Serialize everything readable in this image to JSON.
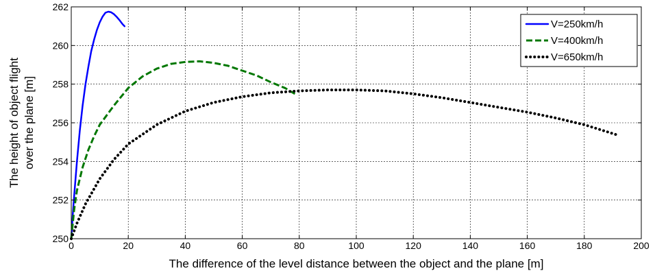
{
  "chart_data": {
    "type": "line",
    "xlabel": "The difference of the level distance between the object and the plane [m]",
    "ylabel_lines": [
      "The height of object flight",
      "over the plane [m]"
    ],
    "xlim": [
      0,
      200
    ],
    "ylim": [
      250,
      262
    ],
    "xticks": [
      0,
      20,
      40,
      60,
      80,
      100,
      120,
      140,
      160,
      180,
      200
    ],
    "yticks": [
      250,
      252,
      254,
      256,
      258,
      260,
      262
    ],
    "grid": true,
    "legend_position": "top-right",
    "series": [
      {
        "name": "V=250km/h",
        "color": "#0000ff",
        "style": "solid",
        "x": [
          0,
          0.5,
          1,
          2,
          3,
          4,
          5,
          6,
          7,
          8,
          9,
          10,
          11,
          12,
          13,
          14,
          15,
          16,
          17,
          18,
          18.7
        ],
        "y": [
          250,
          251.2,
          252.2,
          254.0,
          255.6,
          256.9,
          258.0,
          258.9,
          259.7,
          260.3,
          260.8,
          261.2,
          261.5,
          261.7,
          261.75,
          261.72,
          261.62,
          261.47,
          261.3,
          261.1,
          261.0
        ]
      },
      {
        "name": "V=400km/h",
        "color": "#007700",
        "style": "dashed",
        "x": [
          0,
          1,
          2,
          4,
          6,
          8,
          10,
          15,
          20,
          25,
          30,
          35,
          40,
          45,
          50,
          55,
          60,
          65,
          70,
          75,
          79
        ],
        "y": [
          250,
          251.5,
          252.5,
          253.7,
          254.6,
          255.3,
          255.9,
          256.9,
          257.8,
          258.4,
          258.8,
          259.05,
          259.15,
          259.18,
          259.1,
          258.95,
          258.7,
          258.45,
          258.1,
          257.8,
          257.45
        ]
      },
      {
        "name": "V=650km/h",
        "color": "#000000",
        "style": "dotted",
        "x": [
          0,
          2,
          5,
          10,
          15,
          20,
          30,
          40,
          50,
          60,
          70,
          80,
          90,
          100,
          110,
          120,
          130,
          140,
          150,
          160,
          170,
          180,
          192
        ],
        "y": [
          250,
          250.8,
          251.8,
          253.1,
          254.1,
          254.9,
          255.9,
          256.6,
          257.05,
          257.35,
          257.55,
          257.65,
          257.7,
          257.7,
          257.65,
          257.5,
          257.3,
          257.05,
          256.8,
          256.55,
          256.25,
          255.9,
          255.35
        ]
      }
    ]
  }
}
